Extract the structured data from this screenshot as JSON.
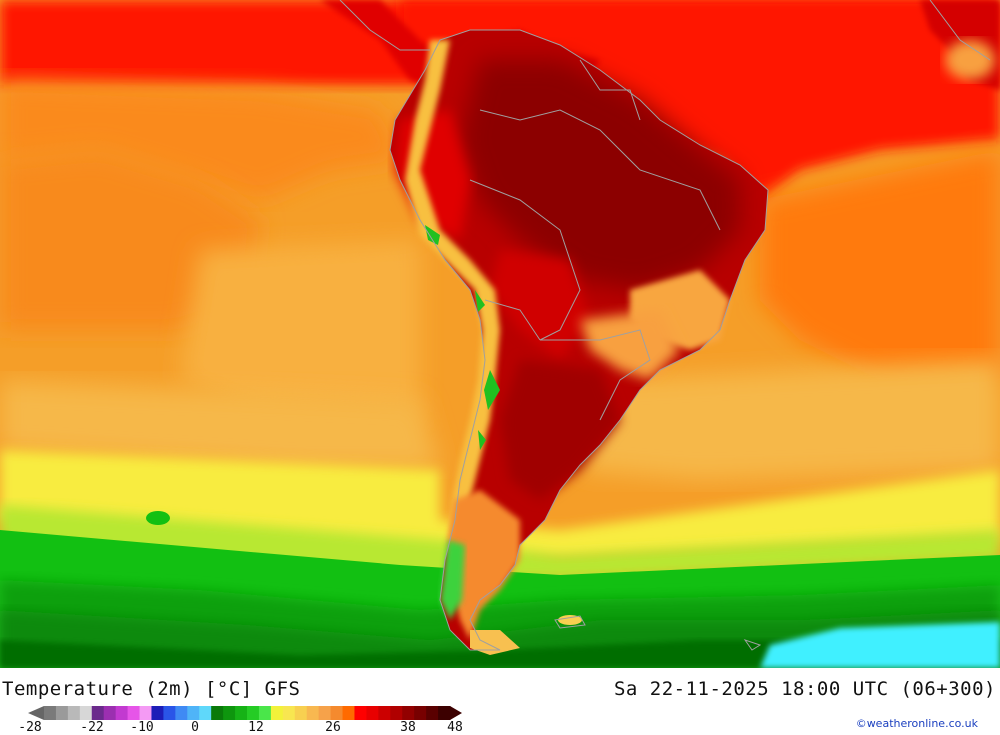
{
  "map": {
    "title": "Temperature (2m) [°C] GFS",
    "valid_time": "Sa 22-11-2025 18:00 UTC (06+300)",
    "credit": "©weatheronline.co.uk",
    "region": "South America"
  },
  "legend": {
    "ticks": [
      "-28",
      "-22",
      "-10",
      "0",
      "12",
      "26",
      "38",
      "48"
    ],
    "colors": [
      "#7a7a7a",
      "#9a9a9a",
      "#b9b9b9",
      "#d7d7d7",
      "#6b2a8c",
      "#9b2fb0",
      "#c23ad0",
      "#e655e8",
      "#f49af4",
      "#1d1db8",
      "#2a55e8",
      "#3f8af4",
      "#4fb4f8",
      "#5fd8fa",
      "#0a7a0a",
      "#0e960e",
      "#16b216",
      "#25cc25",
      "#4ae64a",
      "#f2f23a",
      "#f8e650",
      "#f8d050",
      "#f8b850",
      "#f6a24a",
      "#f58a2e",
      "#ff6a00",
      "#ff0000",
      "#e80000",
      "#cc0000",
      "#b00000",
      "#920000",
      "#780000",
      "#5a0000",
      "#3c0000"
    ]
  },
  "colors": {
    "cold_cyan": "#40f0ff",
    "dark_green": "#0b7e0b",
    "green": "#10c010",
    "yellow": "#f8f040",
    "orange": "#ffa500",
    "red": "#ff1a00",
    "dark_red": "#a00000",
    "coast": "#a0a0a0"
  }
}
